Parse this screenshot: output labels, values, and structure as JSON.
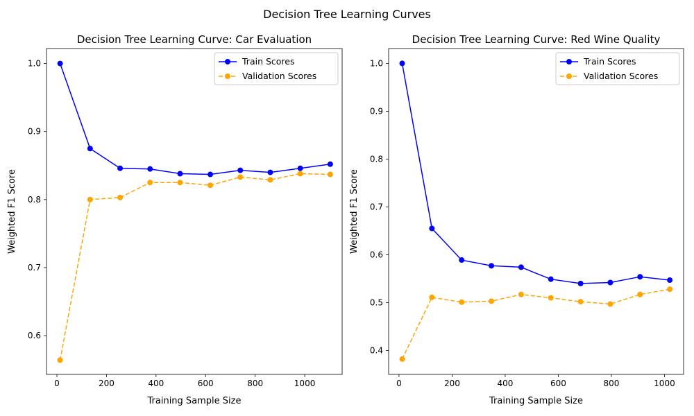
{
  "figure": {
    "suptitle": "Decision Tree Learning Curves"
  },
  "chart_data": [
    {
      "type": "line",
      "title": "Decision Tree Learning Curve: Car Evaluation",
      "xlabel": "Training Sample Size",
      "ylabel": "Weighted F1 Score",
      "xlim": [
        -42,
        1151
      ],
      "ylim": [
        0.543,
        1.022
      ],
      "xticks": [
        0,
        200,
        400,
        600,
        800,
        1000
      ],
      "yticks": [
        0.6,
        0.7,
        0.8,
        0.9,
        1.0
      ],
      "ytick_labels": [
        "0.6",
        "0.7",
        "0.8",
        "0.9",
        "1.0"
      ],
      "legend": "upper right",
      "x": [
        13,
        134,
        255,
        376,
        497,
        619,
        740,
        861,
        982,
        1103
      ],
      "series": [
        {
          "name": "Train Scores",
          "color": "#0000ff",
          "style": "solid",
          "values": [
            1.0,
            0.875,
            0.846,
            0.845,
            0.838,
            0.837,
            0.843,
            0.84,
            0.846,
            0.852
          ]
        },
        {
          "name": "Validation Scores",
          "color": "#ffa500",
          "style": "dashed",
          "values": [
            0.564,
            0.8,
            0.803,
            0.825,
            0.825,
            0.821,
            0.833,
            0.829,
            0.838,
            0.837
          ]
        }
      ]
    },
    {
      "type": "line",
      "title": "Decision Tree Learning Curve: Red Wine Quality",
      "xlabel": "Training Sample Size",
      "ylabel": "Weighted F1 Score",
      "xlim": [
        -39,
        1072
      ],
      "ylim": [
        0.35,
        1.031
      ],
      "xticks": [
        0,
        200,
        400,
        600,
        800,
        1000
      ],
      "yticks": [
        0.4,
        0.5,
        0.6,
        0.7,
        0.8,
        0.9,
        1.0
      ],
      "ytick_labels": [
        "0.4",
        "0.5",
        "0.6",
        "0.7",
        "0.8",
        "0.9",
        "1.0"
      ],
      "legend": "upper right",
      "x": [
        12,
        124,
        236,
        348,
        460,
        572,
        684,
        796,
        908,
        1020
      ],
      "series": [
        {
          "name": "Train Scores",
          "color": "#0000ff",
          "style": "solid",
          "values": [
            1.0,
            0.655,
            0.589,
            0.577,
            0.574,
            0.549,
            0.54,
            0.542,
            0.554,
            0.547
          ]
        },
        {
          "name": "Validation Scores",
          "color": "#ffa500",
          "style": "dashed",
          "values": [
            0.382,
            0.511,
            0.501,
            0.503,
            0.517,
            0.51,
            0.502,
            0.497,
            0.517,
            0.528
          ]
        }
      ]
    }
  ]
}
